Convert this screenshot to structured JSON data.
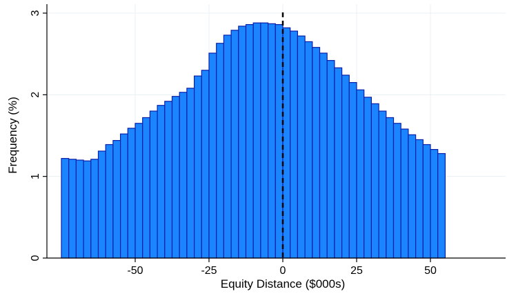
{
  "chart_data": {
    "type": "bar",
    "title": "",
    "xlabel": "Equity Distance ($000s)",
    "ylabel": "Frequency (%)",
    "xlim": [
      -75,
      75
    ],
    "ylim": [
      0,
      3
    ],
    "bin_width": 2.5,
    "xticks": [
      -50,
      -25,
      0,
      25,
      50
    ],
    "xtick_labels": [
      "-50",
      "-25",
      "0",
      "25",
      "50"
    ],
    "yticks": [
      0,
      1,
      2,
      3
    ],
    "ytick_labels": [
      "0",
      "1",
      "2",
      "3"
    ],
    "grid": true,
    "reference_line_x": 0,
    "colors": {
      "bar_fill": "#1a85ff",
      "bar_edge": "#0a1fa8",
      "grid": "#e8f0f4",
      "axis": "#000000"
    },
    "bins": [
      {
        "x0": -75.0,
        "value": 1.22
      },
      {
        "x0": -72.5,
        "value": 1.21
      },
      {
        "x0": -70.0,
        "value": 1.2
      },
      {
        "x0": -67.5,
        "value": 1.19
      },
      {
        "x0": -65.0,
        "value": 1.21
      },
      {
        "x0": -62.5,
        "value": 1.31
      },
      {
        "x0": -60.0,
        "value": 1.39
      },
      {
        "x0": -57.5,
        "value": 1.44
      },
      {
        "x0": -55.0,
        "value": 1.52
      },
      {
        "x0": -52.5,
        "value": 1.59
      },
      {
        "x0": -50.0,
        "value": 1.65
      },
      {
        "x0": -47.5,
        "value": 1.72
      },
      {
        "x0": -45.0,
        "value": 1.8
      },
      {
        "x0": -42.5,
        "value": 1.87
      },
      {
        "x0": -40.0,
        "value": 1.92
      },
      {
        "x0": -37.5,
        "value": 1.98
      },
      {
        "x0": -35.0,
        "value": 2.03
      },
      {
        "x0": -32.5,
        "value": 2.08
      },
      {
        "x0": -30.0,
        "value": 2.23
      },
      {
        "x0": -27.5,
        "value": 2.3
      },
      {
        "x0": -25.0,
        "value": 2.51
      },
      {
        "x0": -22.5,
        "value": 2.63
      },
      {
        "x0": -20.0,
        "value": 2.73
      },
      {
        "x0": -17.5,
        "value": 2.79
      },
      {
        "x0": -15.0,
        "value": 2.84
      },
      {
        "x0": -12.5,
        "value": 2.86
      },
      {
        "x0": -10.0,
        "value": 2.88
      },
      {
        "x0": -7.5,
        "value": 2.88
      },
      {
        "x0": -5.0,
        "value": 2.87
      },
      {
        "x0": -2.5,
        "value": 2.86
      },
      {
        "x0": 0.0,
        "value": 2.82
      },
      {
        "x0": 2.5,
        "value": 2.78
      },
      {
        "x0": 5.0,
        "value": 2.72
      },
      {
        "x0": 7.5,
        "value": 2.65
      },
      {
        "x0": 10.0,
        "value": 2.58
      },
      {
        "x0": 12.5,
        "value": 2.51
      },
      {
        "x0": 15.0,
        "value": 2.42
      },
      {
        "x0": 17.5,
        "value": 2.33
      },
      {
        "x0": 20.0,
        "value": 2.24
      },
      {
        "x0": 22.5,
        "value": 2.15
      },
      {
        "x0": 25.0,
        "value": 2.06
      },
      {
        "x0": 27.5,
        "value": 1.97
      },
      {
        "x0": 30.0,
        "value": 1.89
      },
      {
        "x0": 32.5,
        "value": 1.8
      },
      {
        "x0": 35.0,
        "value": 1.72
      },
      {
        "x0": 37.5,
        "value": 1.65
      },
      {
        "x0": 40.0,
        "value": 1.58
      },
      {
        "x0": 42.5,
        "value": 1.51
      },
      {
        "x0": 45.0,
        "value": 1.45
      },
      {
        "x0": 47.5,
        "value": 1.39
      },
      {
        "x0": 50.0,
        "value": 1.33
      },
      {
        "x0": 52.5,
        "value": 1.28
      }
    ]
  }
}
